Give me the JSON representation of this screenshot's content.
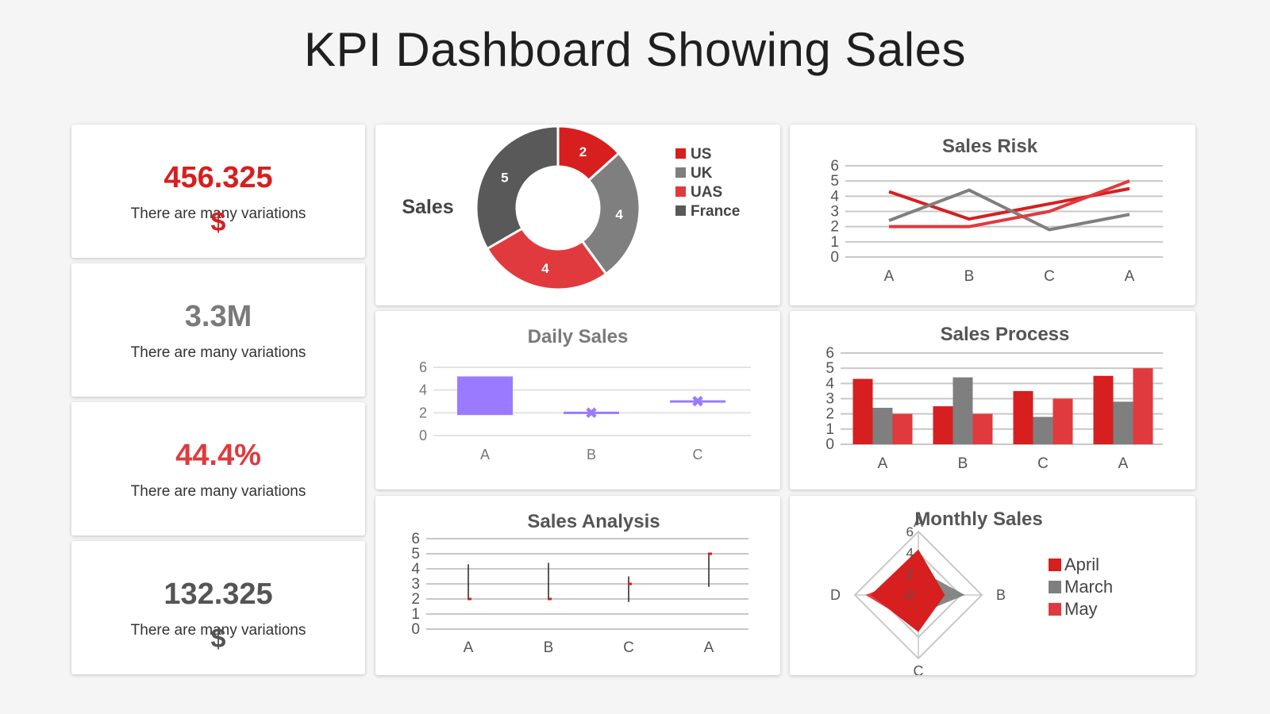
{
  "title": "KPI Dashboard Showing Sales",
  "kpis": [
    {
      "value": "456.325",
      "desc": "There are many variations",
      "symbol": "$",
      "color": "#d71f1f"
    },
    {
      "value": "3.3M",
      "desc": "There are many variations",
      "symbol": "",
      "color": "#7a7a7a"
    },
    {
      "value": "44.4%",
      "desc": "There are many variations",
      "symbol": "",
      "color": "#e03a3e"
    },
    {
      "value": "132.325",
      "desc": "There are many variations",
      "symbol": "$",
      "color": "#555555"
    }
  ],
  "colors": {
    "red": "#d71f1f",
    "gray": "#7f7f7f",
    "lightred": "#e03a3e",
    "dark": "#595959",
    "purple": "#9a7bff"
  },
  "chart_data": [
    {
      "type": "pie",
      "title": "Sales",
      "categories": [
        "US",
        "UK",
        "UAS",
        "France"
      ],
      "values": [
        2,
        4,
        4,
        5
      ],
      "legend": "right"
    },
    {
      "type": "line",
      "title": "Sales Risk",
      "categories": [
        "A",
        "B",
        "C",
        "A"
      ],
      "ylim": [
        0,
        6
      ],
      "yticks": [
        "0",
        "1",
        "2",
        "3",
        "4",
        "5",
        "6"
      ],
      "series": [
        {
          "values": [
            4.3,
            2.5,
            3.5,
            4.5
          ],
          "color": "#d71f1f"
        },
        {
          "values": [
            2.4,
            4.4,
            1.8,
            2.8
          ],
          "color": "#7f7f7f"
        },
        {
          "values": [
            2.0,
            2.0,
            3.0,
            5.0
          ],
          "color": "#e03a3e"
        }
      ]
    },
    {
      "type": "bar",
      "title": "Daily Sales",
      "categories": [
        "A",
        "B",
        "C"
      ],
      "ylim": [
        0,
        6
      ],
      "yticks": [
        "0",
        "2",
        "4",
        "6"
      ],
      "ranges": [
        [
          1.8,
          5.2
        ],
        [
          1.9,
          2.1
        ],
        [
          2.9,
          3.1
        ]
      ],
      "color": "#9a7bff"
    },
    {
      "type": "bar",
      "title": "Sales Process",
      "categories": [
        "A",
        "B",
        "C",
        "A"
      ],
      "ylim": [
        0,
        6
      ],
      "yticks": [
        "0",
        "1",
        "2",
        "3",
        "4",
        "5",
        "6"
      ],
      "series": [
        {
          "values": [
            4.3,
            2.5,
            3.5,
            4.5
          ],
          "color": "#d71f1f"
        },
        {
          "values": [
            2.4,
            4.4,
            1.8,
            2.8
          ],
          "color": "#7f7f7f"
        },
        {
          "values": [
            2.0,
            2.0,
            3.0,
            5.0
          ],
          "color": "#e03a3e"
        }
      ]
    },
    {
      "type": "scatter",
      "title": "Sales Analysis",
      "categories": [
        "A",
        "B",
        "C",
        "A"
      ],
      "ylim": [
        0,
        6
      ],
      "yticks": [
        "0",
        "1",
        "2",
        "3",
        "4",
        "5",
        "6"
      ],
      "ranges": [
        [
          2.0,
          4.3
        ],
        [
          2.0,
          4.4
        ],
        [
          1.8,
          3.5
        ],
        [
          2.8,
          5.0
        ]
      ],
      "points": [
        2.0,
        2.0,
        3.0,
        5.0
      ]
    },
    {
      "type": "radar",
      "title": "Monthly Sales",
      "axes": [
        "A",
        "B",
        "C",
        "D"
      ],
      "rticks": [
        "0",
        "2",
        "4",
        "6"
      ],
      "rmax": 6,
      "series": [
        {
          "name": "April",
          "values": [
            4.3,
            2.5,
            3.5,
            4.5
          ],
          "color": "#d71f1f"
        },
        {
          "name": "March",
          "values": [
            2.4,
            4.4,
            1.8,
            2.8
          ],
          "color": "#7f7f7f"
        },
        {
          "name": "May",
          "values": [
            2.0,
            2.0,
            3.0,
            5.0
          ],
          "color": "#e03a3e"
        }
      ]
    }
  ]
}
